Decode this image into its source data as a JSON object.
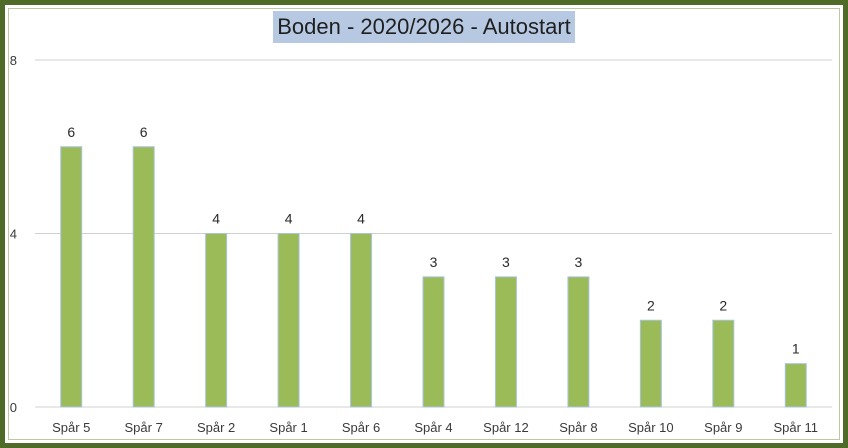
{
  "chart_data": {
    "type": "bar",
    "title": "Boden - 2020/2026 - Autostart",
    "xlabel": "",
    "ylabel": "",
    "categories": [
      "Spår 5",
      "Spår 7",
      "Spår 2",
      "Spår 1",
      "Spår 6",
      "Spår 4",
      "Spår 12",
      "Spår 8",
      "Spår 10",
      "Spår 9",
      "Spår 11"
    ],
    "values": [
      6,
      6,
      4,
      4,
      4,
      3,
      3,
      3,
      2,
      2,
      1
    ],
    "ylim": [
      0,
      8
    ],
    "yticks": [
      0,
      4,
      8
    ],
    "grid": true,
    "legend": "none",
    "colors": {
      "bar": "#9bbb59",
      "bar_edge": "#a9c4df",
      "grid": "#d0d0d0",
      "frame": "#4e6b28",
      "title_highlight": "#b7c9e2"
    }
  }
}
